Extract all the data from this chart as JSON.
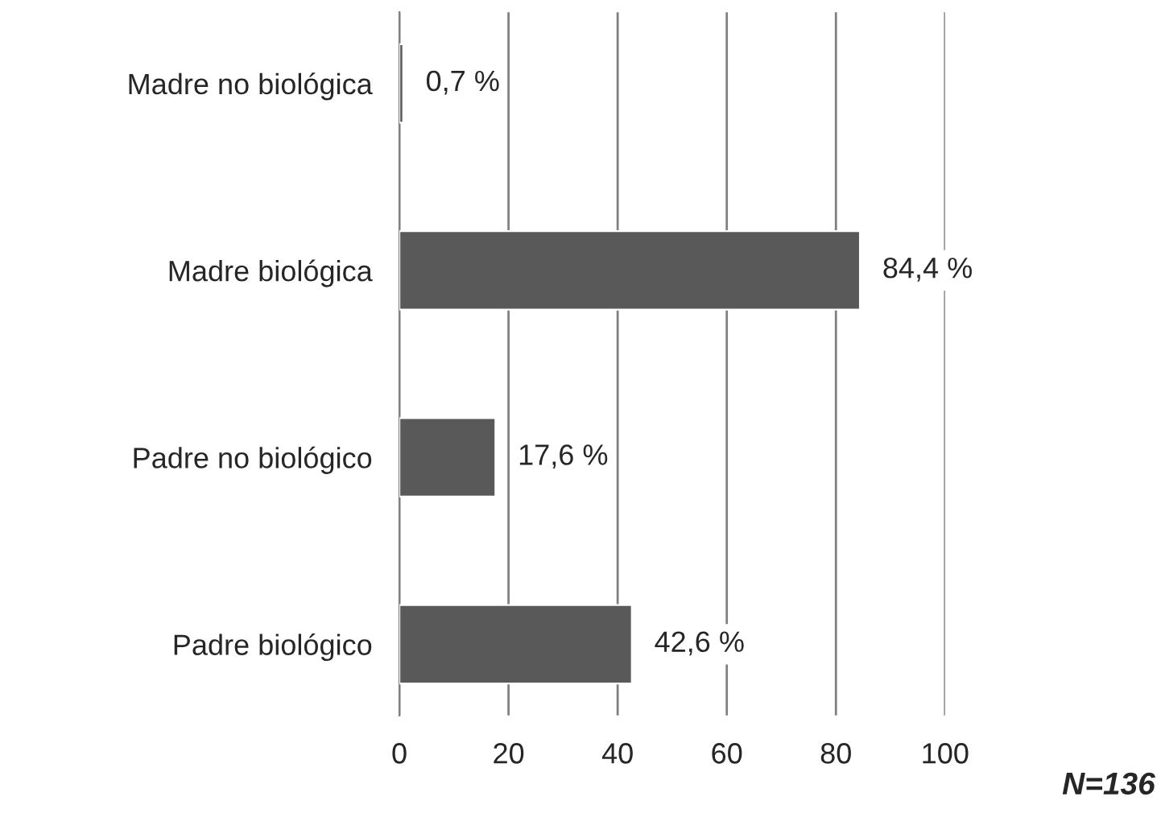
{
  "chart_data": {
    "type": "bar",
    "orientation": "horizontal",
    "categories": [
      "Madre no biológica",
      "Madre biológica",
      "Padre no biológico",
      "Padre biológico"
    ],
    "values": [
      0.7,
      84.4,
      17.6,
      42.6
    ],
    "value_labels": [
      "0,7 %",
      "84,4 %",
      "17,6 %",
      "42,6 %"
    ],
    "color": "#595959",
    "xlim": [
      0,
      100
    ],
    "xticks": [
      0,
      20,
      40,
      60,
      80,
      100
    ],
    "grid": "x",
    "legend": false,
    "annotations": [
      "N=136"
    ]
  }
}
